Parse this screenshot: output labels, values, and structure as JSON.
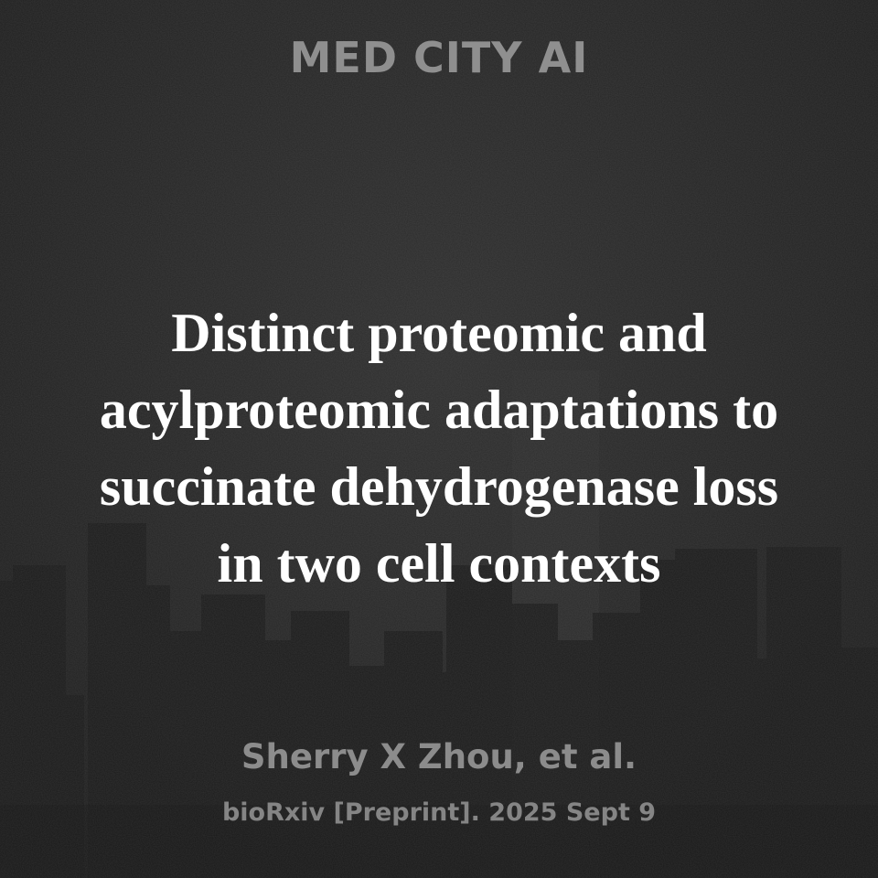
{
  "brand": {
    "name": "MED CITY AI"
  },
  "paper": {
    "title_lines": [
      "Distinct proteomic and",
      "acylproteomic adaptations to",
      "succinate dehydrogenase loss",
      "in two cell contexts"
    ],
    "authors": "Sherry X Zhou, et al.",
    "citation": "bioRxiv [Preprint]. 2025 Sept 9"
  },
  "colors": {
    "background": "#232323",
    "skyline": "#1a1a1a",
    "title_text": "#ffffff",
    "muted_text": "#8c8c8c"
  }
}
